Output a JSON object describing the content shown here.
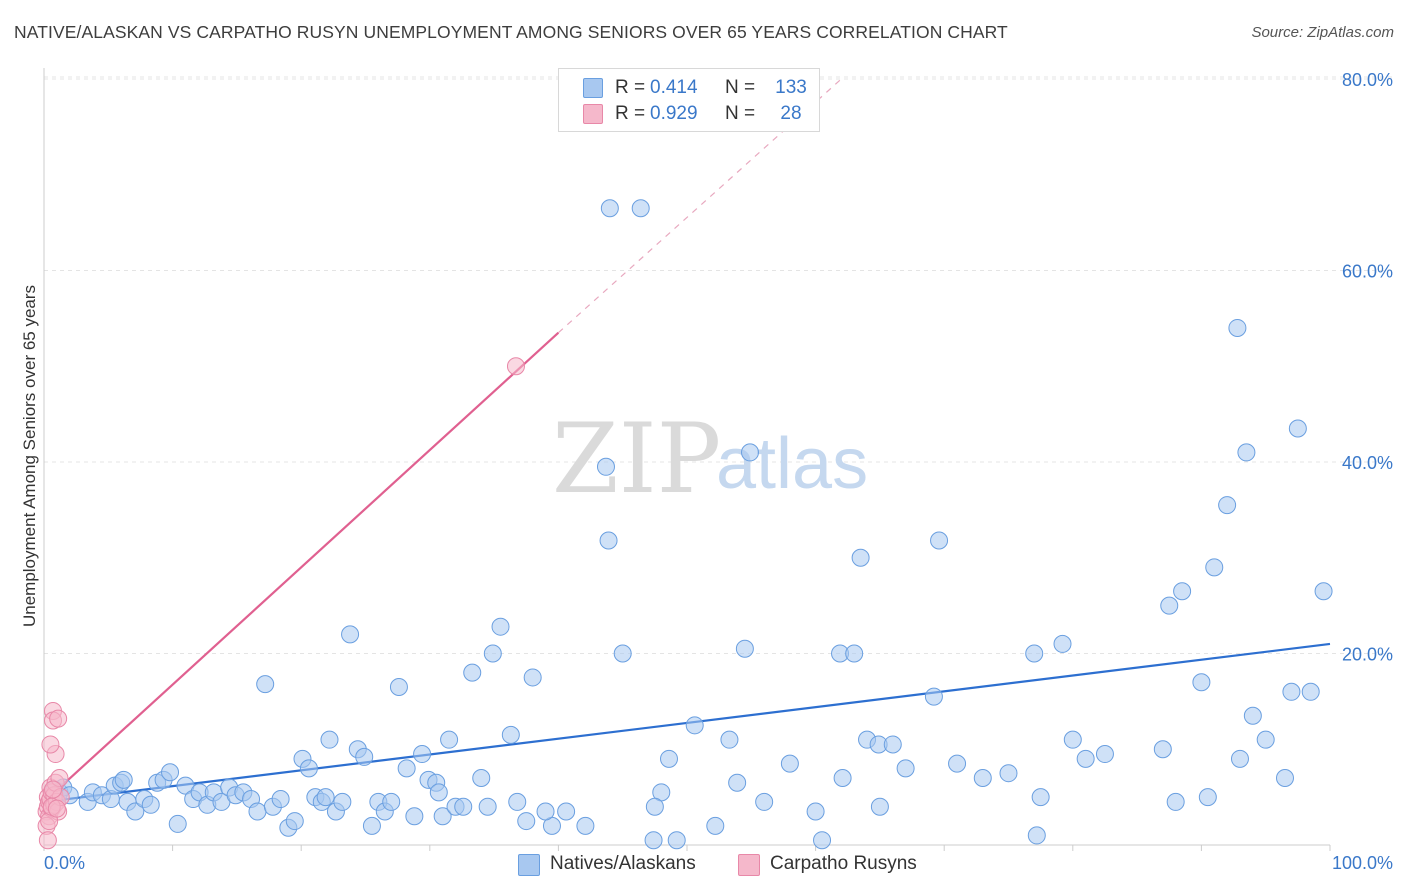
{
  "title": "NATIVE/ALASKAN VS CARPATHO RUSYN UNEMPLOYMENT AMONG SENIORS OVER 65 YEARS CORRELATION CHART",
  "source": "Source: ZipAtlas.com",
  "watermark": {
    "zip": "ZIP",
    "atlas": "atlas"
  },
  "legend": {
    "rows": [
      {
        "r_label": "R = ",
        "r_value": "0.414",
        "n_label": "N = ",
        "n_value": "133",
        "color": "#a8c8f0"
      },
      {
        "r_label": "R = ",
        "r_value": "0.929",
        "n_label": "N = ",
        "n_value": "28",
        "color": "#f5b8cb"
      }
    ]
  },
  "bottom_legend": {
    "series1": "Natives/Alaskans",
    "series2": "Carpatho Rusyns"
  },
  "chart_data": {
    "type": "scatter",
    "title": "NATIVE/ALASKAN VS CARPATHO RUSYN UNEMPLOYMENT AMONG SENIORS OVER 65 YEARS CORRELATION CHART",
    "xlabel": "",
    "ylabel": "Unemployment Among Seniors over 65 years",
    "xlim": [
      0,
      100
    ],
    "ylim": [
      0,
      80
    ],
    "x_tick_labels": [
      "0.0%",
      "100.0%"
    ],
    "y_ticks": [
      20,
      40,
      60,
      80
    ],
    "y_tick_labels": [
      "20.0%",
      "40.0%",
      "60.0%",
      "80.0%"
    ],
    "grid": true,
    "series": [
      {
        "name": "Natives/Alaskans",
        "color": "#6a9fe0",
        "fill": "#a8c8f0",
        "line_color": "#2d6fd0",
        "trend": {
          "x1": 0,
          "y1": 4.5,
          "x2": 100,
          "y2": 21.0
        },
        "points": [
          [
            0.8,
            5.8
          ],
          [
            1.2,
            5.5
          ],
          [
            1.5,
            6.0
          ],
          [
            2.0,
            5.2
          ],
          [
            3.4,
            4.5
          ],
          [
            3.8,
            5.5
          ],
          [
            4.5,
            5.2
          ],
          [
            5.2,
            4.8
          ],
          [
            5.5,
            6.2
          ],
          [
            6.0,
            6.5
          ],
          [
            6.2,
            6.8
          ],
          [
            6.5,
            4.5
          ],
          [
            7.1,
            3.5
          ],
          [
            7.8,
            4.8
          ],
          [
            8.3,
            4.2
          ],
          [
            8.8,
            6.5
          ],
          [
            9.3,
            6.8
          ],
          [
            9.8,
            7.6
          ],
          [
            10.4,
            2.2
          ],
          [
            11.0,
            6.2
          ],
          [
            11.6,
            4.8
          ],
          [
            12.1,
            5.5
          ],
          [
            12.7,
            4.2
          ],
          [
            13.2,
            5.5
          ],
          [
            13.8,
            4.5
          ],
          [
            14.4,
            6.0
          ],
          [
            14.9,
            5.2
          ],
          [
            15.5,
            5.5
          ],
          [
            16.1,
            4.8
          ],
          [
            16.6,
            3.5
          ],
          [
            17.2,
            16.8
          ],
          [
            17.8,
            4.0
          ],
          [
            18.4,
            4.8
          ],
          [
            19.0,
            1.8
          ],
          [
            19.5,
            2.5
          ],
          [
            20.1,
            9.0
          ],
          [
            20.6,
            8.0
          ],
          [
            21.1,
            5.0
          ],
          [
            21.6,
            4.5
          ],
          [
            22.2,
            11.0
          ],
          [
            22.7,
            3.5
          ],
          [
            23.2,
            4.5
          ],
          [
            23.8,
            22.0
          ],
          [
            24.4,
            10.0
          ],
          [
            24.9,
            9.2
          ],
          [
            25.5,
            2.0
          ],
          [
            26.0,
            4.5
          ],
          [
            26.5,
            3.5
          ],
          [
            27.0,
            4.5
          ],
          [
            27.6,
            16.5
          ],
          [
            28.2,
            8.0
          ],
          [
            28.8,
            3.0
          ],
          [
            29.4,
            9.5
          ],
          [
            29.9,
            6.8
          ],
          [
            30.5,
            6.5
          ],
          [
            31.0,
            3.0
          ],
          [
            31.5,
            11.0
          ],
          [
            32.0,
            4.0
          ],
          [
            32.6,
            4.0
          ],
          [
            33.3,
            18.0
          ],
          [
            34.0,
            7.0
          ],
          [
            34.5,
            4.0
          ],
          [
            34.9,
            20.0
          ],
          [
            35.5,
            22.8
          ],
          [
            36.3,
            11.5
          ],
          [
            36.8,
            4.5
          ],
          [
            37.5,
            2.5
          ],
          [
            38.0,
            17.5
          ],
          [
            39.5,
            2.0
          ],
          [
            40.6,
            3.5
          ],
          [
            42.1,
            2.0
          ],
          [
            43.7,
            39.5
          ],
          [
            43.9,
            31.8
          ],
          [
            44.0,
            66.5
          ],
          [
            45.0,
            20.0
          ],
          [
            46.4,
            66.5
          ],
          [
            47.4,
            0.5
          ],
          [
            48.0,
            5.5
          ],
          [
            48.6,
            9.0
          ],
          [
            49.2,
            0.5
          ],
          [
            50.6,
            12.5
          ],
          [
            52.2,
            2.0
          ],
          [
            53.3,
            11.0
          ],
          [
            53.9,
            6.5
          ],
          [
            54.5,
            20.5
          ],
          [
            54.9,
            41.0
          ],
          [
            56.0,
            4.5
          ],
          [
            58.0,
            8.5
          ],
          [
            60.0,
            3.5
          ],
          [
            60.5,
            0.5
          ],
          [
            61.9,
            20.0
          ],
          [
            62.1,
            7.0
          ],
          [
            63.0,
            20.0
          ],
          [
            63.5,
            30.0
          ],
          [
            64.0,
            11.0
          ],
          [
            64.9,
            10.5
          ],
          [
            65.0,
            4.0
          ],
          [
            67.0,
            8.0
          ],
          [
            69.2,
            15.5
          ],
          [
            69.6,
            31.8
          ],
          [
            71.0,
            8.5
          ],
          [
            73.0,
            7.0
          ],
          [
            75.0,
            7.5
          ],
          [
            77.0,
            20.0
          ],
          [
            77.2,
            1.0
          ],
          [
            77.5,
            5.0
          ],
          [
            79.2,
            21.0
          ],
          [
            80.0,
            11.0
          ],
          [
            81.0,
            9.0
          ],
          [
            82.5,
            9.5
          ],
          [
            87.0,
            10.0
          ],
          [
            87.5,
            25.0
          ],
          [
            88.0,
            4.5
          ],
          [
            88.5,
            26.5
          ],
          [
            90.0,
            17.0
          ],
          [
            90.5,
            5.0
          ],
          [
            91.0,
            29.0
          ],
          [
            92.0,
            35.5
          ],
          [
            92.8,
            54.0
          ],
          [
            93.0,
            9.0
          ],
          [
            93.5,
            41.0
          ],
          [
            94.0,
            13.5
          ],
          [
            95.0,
            11.0
          ],
          [
            96.5,
            7.0
          ],
          [
            97.0,
            16.0
          ],
          [
            97.5,
            43.5
          ],
          [
            98.5,
            16.0
          ],
          [
            99.5,
            26.5
          ],
          [
            66.0,
            10.5
          ],
          [
            21.9,
            5.0
          ],
          [
            39.0,
            3.5
          ],
          [
            30.7,
            5.5
          ],
          [
            47.5,
            4.0
          ]
        ]
      },
      {
        "name": "Carpatho Rusyns",
        "color": "#e888a8",
        "fill": "#f5b8cb",
        "line_color": "#e06090",
        "trend": {
          "x1": 0,
          "y1": 4.5,
          "x2": 40,
          "y2": 53.5
        },
        "trend_dashed": {
          "x1": 40,
          "y1": 53.5,
          "x2": 62,
          "y2": 80
        },
        "points": [
          [
            0.2,
            3.5
          ],
          [
            0.3,
            4.0
          ],
          [
            0.3,
            5.0
          ],
          [
            0.4,
            4.5
          ],
          [
            0.4,
            3.0
          ],
          [
            0.5,
            6.0
          ],
          [
            0.5,
            4.8
          ],
          [
            0.6,
            5.5
          ],
          [
            0.6,
            3.8
          ],
          [
            0.7,
            14.0
          ],
          [
            0.7,
            13.0
          ],
          [
            0.8,
            4.2
          ],
          [
            0.8,
            5.2
          ],
          [
            0.9,
            9.5
          ],
          [
            0.9,
            6.5
          ],
          [
            1.0,
            4.5
          ],
          [
            1.1,
            13.2
          ],
          [
            1.1,
            3.5
          ],
          [
            1.2,
            7.0
          ],
          [
            1.3,
            5.0
          ],
          [
            0.2,
            2.0
          ],
          [
            0.3,
            0.5
          ],
          [
            0.4,
            2.5
          ],
          [
            0.5,
            10.5
          ],
          [
            0.6,
            4.0
          ],
          [
            0.7,
            5.8
          ],
          [
            1.0,
            3.8
          ],
          [
            36.7,
            50.0
          ]
        ]
      }
    ]
  }
}
